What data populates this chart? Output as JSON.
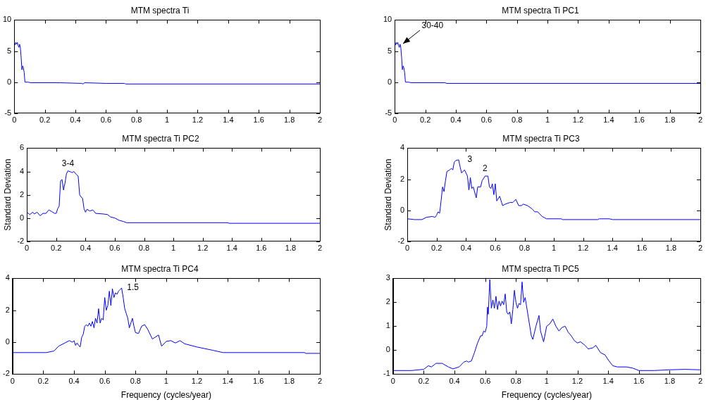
{
  "chart_data": [
    {
      "type": "line",
      "title": "MTM spectra Ti",
      "xlim": [
        0,
        2
      ],
      "xticks": [
        0,
        0.2,
        0.4,
        0.6,
        0.8,
        1,
        1.2,
        1.4,
        1.6,
        1.8,
        2
      ],
      "ylim": [
        -5,
        10
      ],
      "yticks": [
        -5,
        0,
        5,
        10
      ],
      "grid": false,
      "legend": false,
      "marker": "none",
      "x": [
        0,
        0.005,
        0.01,
        0.015,
        0.02,
        0.025,
        0.03,
        0.035,
        0.04,
        0.045,
        0.05,
        0.055,
        0.06,
        0.065,
        0.07,
        0.09,
        0.11,
        0.3,
        0.44,
        0.45,
        0.46,
        0.6,
        0.72,
        0.73,
        2
      ],
      "series": [
        {
          "color": "#0000ff",
          "values": [
            6.5,
            6.0,
            6.4,
            6.1,
            6.4,
            5.9,
            5.6,
            6.1,
            5.5,
            4,
            2,
            2.6,
            2.3,
            1.5,
            0,
            0,
            -0.1,
            -0.1,
            -0.2,
            -0.3,
            -0.1,
            -0.2,
            -0.2,
            -0.3,
            -0.3
          ]
        }
      ]
    },
    {
      "type": "line",
      "title": "MTM spectra Ti PC1",
      "xlim": [
        0,
        2
      ],
      "xticks": [
        0,
        0.2,
        0.4,
        0.6,
        0.8,
        1,
        1.2,
        1.4,
        1.6,
        1.8,
        2
      ],
      "ylim": [
        -5,
        10
      ],
      "yticks": [
        -5,
        0,
        5,
        10
      ],
      "grid": false,
      "legend": false,
      "marker": "none",
      "annotations": [
        {
          "text": "30-40",
          "x": 0.035,
          "y": 6.1
        }
      ],
      "x": [
        0,
        0.005,
        0.01,
        0.015,
        0.02,
        0.025,
        0.03,
        0.035,
        0.04,
        0.045,
        0.05,
        0.055,
        0.06,
        0.065,
        0.07,
        0.09,
        0.11,
        0.33,
        0.34,
        2
      ],
      "series": [
        {
          "color": "#0000ff",
          "values": [
            6.5,
            6.0,
            6.4,
            6.1,
            6.4,
            5.9,
            5.6,
            6.1,
            5.5,
            4,
            2,
            2.6,
            2.3,
            1.5,
            0,
            0,
            -0.1,
            -0.1,
            -0.2,
            -0.2
          ]
        }
      ]
    },
    {
      "type": "line",
      "title": "MTM spectra Ti PC2",
      "ylabel": "Standard Deviation",
      "xlim": [
        0,
        2
      ],
      "xticks": [
        0,
        0.2,
        0.4,
        0.6,
        0.8,
        1,
        1.2,
        1.4,
        1.6,
        1.8,
        2
      ],
      "ylim": [
        -2,
        6
      ],
      "yticks": [
        -2,
        0,
        2,
        4,
        6
      ],
      "grid": false,
      "legend": false,
      "marker": "none",
      "annotations": [
        {
          "text": "3-4",
          "x": 0.28,
          "y": 4.05
        }
      ],
      "x": [
        0,
        0.02,
        0.04,
        0.05,
        0.07,
        0.09,
        0.11,
        0.13,
        0.15,
        0.17,
        0.19,
        0.2,
        0.21,
        0.22,
        0.23,
        0.24,
        0.25,
        0.26,
        0.27,
        0.28,
        0.3,
        0.31,
        0.32,
        0.34,
        0.35,
        0.36,
        0.37,
        0.38,
        0.39,
        0.4,
        0.41,
        0.43,
        0.45,
        0.47,
        0.52,
        0.55,
        0.57,
        0.6,
        0.63,
        0.66,
        0.68,
        1.37,
        1.38,
        2
      ],
      "series": [
        {
          "color": "#0000ff",
          "values": [
            0.5,
            0.3,
            0.5,
            0.35,
            0.5,
            0.2,
            0.4,
            0.4,
            0.7,
            0.55,
            0.4,
            0.4,
            0.8,
            1.0,
            3.2,
            3.3,
            2.4,
            3.0,
            3.8,
            4.05,
            3.95,
            3.9,
            4.0,
            3.7,
            3.6,
            2.0,
            1.8,
            1.7,
            0.8,
            0.5,
            0.75,
            0.6,
            0.7,
            0.4,
            0.35,
            0.3,
            0.1,
            0,
            -0.2,
            -0.3,
            -0.4,
            -0.4,
            -0.45,
            -0.45
          ]
        }
      ]
    },
    {
      "type": "line",
      "title": "MTM spectra Ti PC3",
      "ylabel": "Standard Deviation",
      "xlim": [
        0,
        2
      ],
      "xticks": [
        0,
        0.2,
        0.4,
        0.6,
        0.8,
        1,
        1.2,
        1.4,
        1.6,
        1.8,
        2
      ],
      "ylim": [
        -2,
        4
      ],
      "yticks": [
        -2,
        0,
        2,
        4
      ],
      "grid": false,
      "legend": false,
      "marker": "none",
      "annotations": [
        {
          "text": "3",
          "x": 0.35,
          "y": 3.25
        },
        {
          "text": "2",
          "x": 0.53,
          "y": 2.2
        }
      ],
      "x": [
        0,
        0.05,
        0.1,
        0.13,
        0.17,
        0.19,
        0.2,
        0.21,
        0.22,
        0.23,
        0.24,
        0.25,
        0.26,
        0.27,
        0.29,
        0.3,
        0.31,
        0.32,
        0.33,
        0.35,
        0.36,
        0.37,
        0.39,
        0.41,
        0.42,
        0.43,
        0.44,
        0.45,
        0.47,
        0.48,
        0.5,
        0.51,
        0.53,
        0.55,
        0.56,
        0.57,
        0.58,
        0.59,
        0.6,
        0.61,
        0.63,
        0.65,
        0.67,
        0.7,
        0.72,
        0.74,
        0.76,
        0.78,
        0.79,
        0.82,
        0.85,
        0.87,
        0.89,
        0.92,
        0.95,
        1.05,
        1.06,
        1.3,
        1.31,
        1.38,
        1.4,
        2
      ],
      "series": [
        {
          "color": "#0000ff",
          "values": [
            -0.55,
            -0.6,
            -0.6,
            -0.45,
            -0.4,
            -0.45,
            -0.3,
            -0.1,
            -0.2,
            0.6,
            1.5,
            1.2,
            1.9,
            2.5,
            2.6,
            2.7,
            2.6,
            3.1,
            3.2,
            3.25,
            2.8,
            2.4,
            2.6,
            2.2,
            1.3,
            2.1,
            1.4,
            1.5,
            0.8,
            1.5,
            1.5,
            1.9,
            2.2,
            2.2,
            1.5,
            1.4,
            1.7,
            1.0,
            1.7,
            0.6,
            0.9,
            0.3,
            0.4,
            0.5,
            0.5,
            0.7,
            0.3,
            0.3,
            0.4,
            0.3,
            0.1,
            -0.1,
            -0.1,
            -0.4,
            -0.55,
            -0.55,
            -0.6,
            -0.6,
            -0.55,
            -0.55,
            -0.6,
            -0.6
          ]
        }
      ]
    },
    {
      "type": "line",
      "title": "MTM spectra Ti PC4",
      "xlabel": "Frequency (cycles/year)",
      "xlim": [
        0,
        2
      ],
      "xticks": [
        0,
        0.2,
        0.4,
        0.6,
        0.8,
        1,
        1.2,
        1.4,
        1.6,
        1.8,
        2
      ],
      "ylim": [
        -2,
        4
      ],
      "yticks": [
        -2,
        0,
        2,
        4
      ],
      "grid": false,
      "legend": false,
      "marker": "none",
      "annotations": [
        {
          "text": "1.5",
          "x": 0.71,
          "y": 3.4
        }
      ],
      "x": [
        0,
        0.22,
        0.27,
        0.3,
        0.34,
        0.37,
        0.39,
        0.4,
        0.41,
        0.42,
        0.43,
        0.44,
        0.45,
        0.46,
        0.47,
        0.48,
        0.49,
        0.5,
        0.51,
        0.52,
        0.53,
        0.54,
        0.55,
        0.56,
        0.57,
        0.58,
        0.59,
        0.6,
        0.61,
        0.62,
        0.63,
        0.64,
        0.65,
        0.66,
        0.67,
        0.68,
        0.69,
        0.7,
        0.71,
        0.72,
        0.73,
        0.74,
        0.75,
        0.76,
        0.77,
        0.78,
        0.79,
        0.8,
        0.82,
        0.84,
        0.86,
        0.88,
        0.91,
        0.95,
        0.97,
        1.0,
        1.03,
        1.06,
        1.09,
        1.12,
        1.2,
        1.3,
        1.37,
        1.9,
        1.91,
        2
      ],
      "series": [
        {
          "color": "#0000ff",
          "values": [
            -0.65,
            -0.65,
            -0.55,
            -0.25,
            -0.05,
            0.1,
            0,
            0.1,
            -0.2,
            -0.05,
            -0.2,
            -0.3,
            0.3,
            0.5,
            1.0,
            1.1,
            1.0,
            1.2,
            1.0,
            1.3,
            0.9,
            1.5,
            1.2,
            2.1,
            1.2,
            1.5,
            1.4,
            2.8,
            2.0,
            2.3,
            3.2,
            2.3,
            3.35,
            2.8,
            3.1,
            3.0,
            3.2,
            3.3,
            3.4,
            2.8,
            2.1,
            1.8,
            1.5,
            0.9,
            1.2,
            1.5,
            1.0,
            0.6,
            0.55,
            1.0,
            1.1,
            0.8,
            0.2,
            0.45,
            -0.25,
            0.05,
            0.1,
            -0.05,
            0.1,
            -0.1,
            -0.3,
            -0.5,
            -0.65,
            -0.65,
            -0.7,
            -0.7
          ]
        }
      ]
    },
    {
      "type": "line",
      "title": "MTM spectra Ti PC5",
      "xlabel": "Frequency (cycles/year)",
      "xlim": [
        0,
        2
      ],
      "xticks": [
        0,
        0.2,
        0.4,
        0.6,
        0.8,
        1,
        1.2,
        1.4,
        1.6,
        1.8,
        2
      ],
      "ylim": [
        -1,
        3
      ],
      "yticks": [
        -1,
        0,
        1,
        2,
        3
      ],
      "grid": false,
      "legend": false,
      "marker": "none",
      "x": [
        0,
        0.12,
        0.2,
        0.23,
        0.25,
        0.28,
        0.32,
        0.36,
        0.39,
        0.43,
        0.46,
        0.48,
        0.49,
        0.51,
        0.53,
        0.55,
        0.57,
        0.58,
        0.59,
        0.6,
        0.61,
        0.615,
        0.62,
        0.63,
        0.64,
        0.65,
        0.66,
        0.67,
        0.68,
        0.69,
        0.7,
        0.71,
        0.72,
        0.73,
        0.74,
        0.75,
        0.76,
        0.77,
        0.78,
        0.79,
        0.8,
        0.81,
        0.82,
        0.83,
        0.84,
        0.85,
        0.86,
        0.88,
        0.9,
        0.91,
        0.93,
        0.95,
        0.96,
        0.98,
        1.0,
        1.02,
        1.04,
        1.06,
        1.08,
        1.1,
        1.12,
        1.14,
        1.16,
        1.18,
        1.2,
        1.22,
        1.25,
        1.27,
        1.3,
        1.32,
        1.35,
        1.38,
        1.4,
        1.43,
        1.46,
        1.52,
        1.56,
        1.6,
        1.7,
        1.8,
        1.9,
        2
      ],
      "series": [
        {
          "color": "#0000ff",
          "values": [
            -0.85,
            -0.85,
            -0.8,
            -0.65,
            -0.7,
            -0.55,
            -0.55,
            -0.7,
            -0.78,
            -0.7,
            -0.5,
            -0.45,
            -0.5,
            -0.45,
            -0.1,
            0.3,
            0.6,
            0.6,
            0.8,
            0.75,
            1.0,
            1.8,
            1.5,
            2.95,
            1.75,
            2.1,
            1.75,
            2.25,
            1.7,
            2.05,
            1.85,
            2.05,
            1.9,
            2.35,
            1.6,
            1.5,
            1.6,
            1.1,
            1.7,
            2.5,
            2.0,
            1.75,
            1.95,
            1.9,
            2.85,
            2.0,
            2.2,
            1.4,
            0.6,
            0.45,
            1.0,
            1.45,
            0.8,
            0.35,
            1.0,
            1.1,
            1.3,
            1.0,
            0.8,
            0.95,
            1.0,
            0.75,
            0.6,
            0.4,
            0.3,
            0.35,
            0.2,
            0.05,
            0.1,
            0.2,
            -0.1,
            -0.2,
            -0.4,
            -0.65,
            -0.7,
            -0.7,
            -0.75,
            -0.85,
            -0.85,
            -0.82,
            -0.8,
            -0.82
          ]
        }
      ]
    }
  ]
}
